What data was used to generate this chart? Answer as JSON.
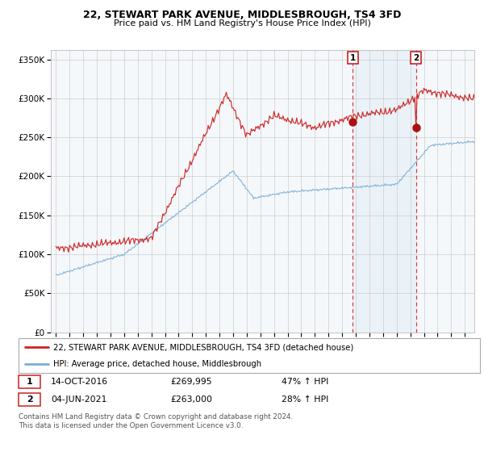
{
  "title": "22, STEWART PARK AVENUE, MIDDLESBROUGH, TS4 3FD",
  "subtitle": "Price paid vs. HM Land Registry's House Price Index (HPI)",
  "legend_line1": "22, STEWART PARK AVENUE, MIDDLESBROUGH, TS4 3FD (detached house)",
  "legend_line2": "HPI: Average price, detached house, Middlesbrough",
  "point1_date": "14-OCT-2016",
  "point1_price": 269995,
  "point1_price_str": "£269,995",
  "point1_hpi": "47% ↑ HPI",
  "point1_t": 2016.79,
  "point2_date": "04-JUN-2021",
  "point2_price": 263000,
  "point2_price_str": "£263,000",
  "point2_hpi": "28% ↑ HPI",
  "point2_t": 2021.42,
  "footer": "Contains HM Land Registry data © Crown copyright and database right 2024.\nThis data is licensed under the Open Government Licence v3.0.",
  "hpi_color": "#7aaed6",
  "price_color": "#cc2222",
  "point_color": "#aa1111",
  "vline_color": "#dd2222",
  "shade_color": "#d8e8f4",
  "ylim": [
    0,
    362500
  ],
  "yticks": [
    0,
    50000,
    100000,
    150000,
    200000,
    250000,
    300000,
    350000
  ],
  "xlim_left": 1994.62,
  "xlim_right": 2025.7,
  "title_fontsize": 9.0,
  "subtitle_fontsize": 8.0,
  "tick_fontsize": 7.0,
  "ytick_fontsize": 7.5
}
